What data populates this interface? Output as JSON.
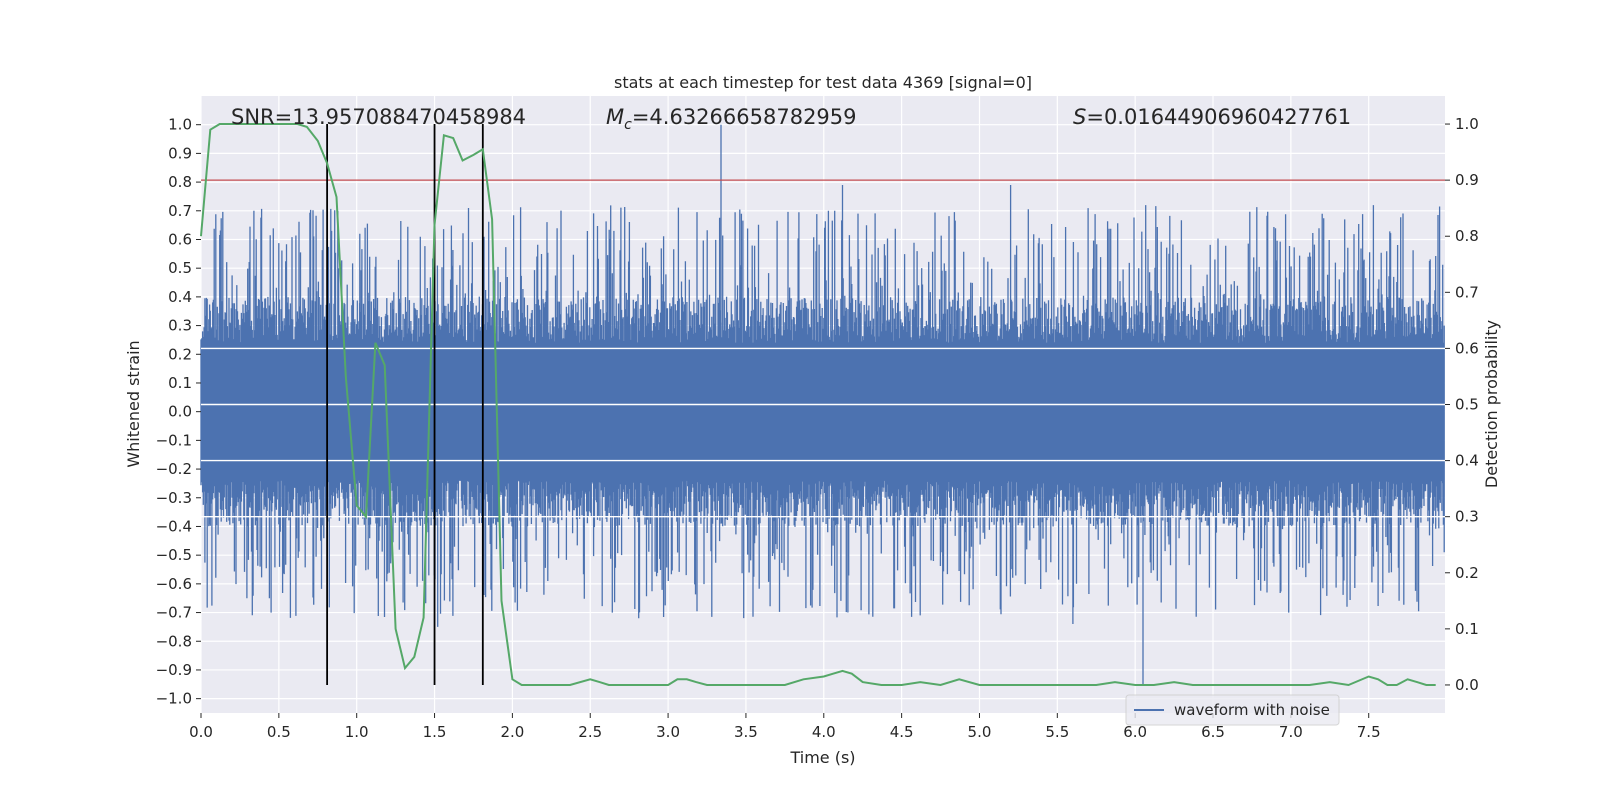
{
  "chart_data": {
    "type": "line",
    "title": "stats at each timestep for test data 4369 [signal=0]",
    "xlabel": "Time (s)",
    "ylabel": "Whitened strain",
    "ylabel_right": "Detection probability",
    "xlim": [
      0,
      7.99
    ],
    "ylim": [
      -1.05,
      1.1
    ],
    "ylim_right": [
      -0.05,
      1.05
    ],
    "xticks": [
      0.0,
      0.5,
      1.0,
      1.5,
      2.0,
      2.5,
      3.0,
      3.5,
      4.0,
      4.5,
      5.0,
      5.5,
      6.0,
      6.5,
      7.0,
      7.5
    ],
    "xtick_labels": [
      "0.0",
      "0.5",
      "1.0",
      "1.5",
      "2.0",
      "2.5",
      "3.0",
      "3.5",
      "4.0",
      "4.5",
      "5.0",
      "5.5",
      "6.0",
      "6.5",
      "7.0",
      "7.5"
    ],
    "yticks": [
      1.0,
      0.9,
      0.8,
      0.7,
      0.6,
      0.5,
      0.4,
      0.3,
      0.2,
      0.1,
      0.0,
      -0.1,
      -0.2,
      -0.3,
      -0.4,
      -0.5,
      -0.6,
      -0.7,
      -0.8,
      -0.9,
      -1.0
    ],
    "ytick_labels": [
      "1.0",
      "0.9",
      "0.8",
      "0.7",
      "0.6",
      "0.5",
      "0.4",
      "0.3",
      "0.2",
      "0.1",
      "0.0",
      "−0.1",
      "−0.2",
      "−0.3",
      "−0.4",
      "−0.5",
      "−0.6",
      "−0.7",
      "−0.8",
      "−0.9",
      "−1.0"
    ],
    "yticks_right": [
      1.0,
      0.9,
      0.8,
      0.7,
      0.6,
      0.5,
      0.4,
      0.3,
      0.2,
      0.1,
      0.0
    ],
    "ytick_labels_right": [
      "1.0",
      "0.9",
      "0.8",
      "0.7",
      "0.6",
      "0.5",
      "0.4",
      "0.3",
      "0.2",
      "0.1",
      "0.0"
    ],
    "grid": true,
    "legend_position": "lower right",
    "annotations": {
      "snr": "SNR=13.957088470458984",
      "mc_symbol": "M",
      "mc_subscript": "c",
      "mc_value": "=4.63266658782959",
      "s_symbol": "S",
      "s_value": "=0.01644906960427761"
    },
    "threshold_right": 0.9,
    "vertical_lines_x": [
      0.81,
      1.5,
      1.81
    ],
    "series": [
      {
        "name": "waveform with noise",
        "axis": "left",
        "color": "#4c72b0",
        "style": "noise",
        "envelope_typical": 0.4,
        "notable_peaks": [
          {
            "x": 3.34,
            "y": 1.0
          },
          {
            "x": 4.12,
            "y": 0.79
          },
          {
            "x": 5.2,
            "y": 0.79
          },
          {
            "x": 7.53,
            "y": 0.72
          },
          {
            "x": 0.34,
            "y": 0.7
          },
          {
            "x": 1.02,
            "y": 0.62
          },
          {
            "x": 6.05,
            "y": -0.95
          },
          {
            "x": 0.45,
            "y": -0.7
          },
          {
            "x": 1.52,
            "y": -0.75
          },
          {
            "x": 5.6,
            "y": -0.74
          }
        ]
      },
      {
        "axis": "right",
        "color": "#55a868",
        "x": [
          0.0,
          0.06,
          0.12,
          0.18,
          0.25,
          0.31,
          0.37,
          0.43,
          0.5,
          0.56,
          0.62,
          0.68,
          0.75,
          0.81,
          0.87,
          0.93,
          1.0,
          1.06,
          1.12,
          1.18,
          1.25,
          1.31,
          1.37,
          1.43,
          1.5,
          1.56,
          1.62,
          1.68,
          1.75,
          1.81,
          1.87,
          1.93,
          2.0,
          2.06,
          2.12,
          2.25,
          2.37,
          2.5,
          2.56,
          2.62,
          2.75,
          2.87,
          3.0,
          3.06,
          3.12,
          3.18,
          3.25,
          3.37,
          3.5,
          3.62,
          3.75,
          3.87,
          4.0,
          4.06,
          4.12,
          4.18,
          4.25,
          4.37,
          4.5,
          4.62,
          4.75,
          4.87,
          5.0,
          5.12,
          5.25,
          5.37,
          5.5,
          5.62,
          5.75,
          5.87,
          6.0,
          6.12,
          6.25,
          6.37,
          6.5,
          6.62,
          6.75,
          6.87,
          7.0,
          7.12,
          7.25,
          7.37,
          7.5,
          7.56,
          7.62,
          7.68,
          7.75,
          7.81,
          7.87,
          7.93
        ],
        "values": [
          0.8,
          0.99,
          1.0,
          1.0,
          1.0,
          1.0,
          1.0,
          1.0,
          1.0,
          1.0,
          1.0,
          0.995,
          0.97,
          0.93,
          0.87,
          0.55,
          0.32,
          0.3,
          0.61,
          0.57,
          0.1,
          0.03,
          0.05,
          0.12,
          0.82,
          0.98,
          0.975,
          0.935,
          0.945,
          0.955,
          0.83,
          0.15,
          0.01,
          0.0,
          0.0,
          0.0,
          0.0,
          0.01,
          0.005,
          0.0,
          0.0,
          0.0,
          0.0,
          0.01,
          0.01,
          0.005,
          0.0,
          0.0,
          0.0,
          0.0,
          0.0,
          0.01,
          0.015,
          0.02,
          0.025,
          0.02,
          0.005,
          0.0,
          0.0,
          0.005,
          0.0,
          0.01,
          0.0,
          0.0,
          0.0,
          0.0,
          0.0,
          0.0,
          0.0,
          0.005,
          0.0,
          0.0,
          0.005,
          0.0,
          0.0,
          0.0,
          0.0,
          0.0,
          0.0,
          0.0,
          0.005,
          0.0,
          0.015,
          0.01,
          0.0,
          0.0,
          0.01,
          0.005,
          0.0,
          0.0
        ]
      }
    ]
  }
}
